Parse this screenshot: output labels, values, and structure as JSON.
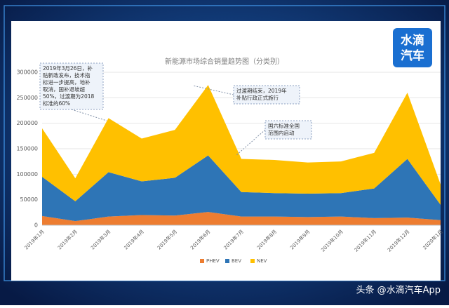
{
  "chart_data": {
    "type": "stacked_area",
    "title": "新能源市场综合销量趋势图（分类别）",
    "categories": [
      "2019年1月",
      "2019年2月",
      "2019年3月",
      "2019年4月",
      "2019年5月",
      "2019年6月",
      "2019年7月",
      "2019年8月",
      "2019年9月",
      "2019年10月",
      "2019年11月",
      "2019年12月",
      "2020年1月"
    ],
    "series": [
      {
        "name": "PHEV",
        "color": "#ed7d31",
        "values": [
          18000,
          8000,
          17000,
          20000,
          19000,
          26000,
          17000,
          17000,
          16000,
          17000,
          14000,
          15000,
          10000
        ]
      },
      {
        "name": "BEV",
        "color": "#2e75b6",
        "values": [
          77000,
          39000,
          87000,
          66000,
          74000,
          111000,
          48000,
          46000,
          46000,
          46000,
          58000,
          115000,
          30000
        ]
      },
      {
        "name": "NEV",
        "color": "#ffc000",
        "values": [
          95000,
          45000,
          106000,
          84000,
          94000,
          138000,
          65000,
          65000,
          61000,
          62000,
          70000,
          130000,
          40000
        ]
      }
    ],
    "ylim": [
      0,
      300000
    ],
    "yticks": [
      0,
      50000,
      100000,
      150000,
      200000,
      250000,
      300000
    ],
    "legend": "bottom",
    "annotations": [
      {
        "lines": [
          "2019年3月26日，补",
          "贴新政发布，技术指",
          "标进一步提高，地补",
          "取消，国补退坡超",
          "50%，过渡期为2018",
          "标准的60%"
        ]
      },
      {
        "lines": [
          "过渡期结束，2019年",
          "补贴行政正式施行"
        ]
      },
      {
        "lines": [
          "国六标准全国",
          "范围内启动"
        ]
      }
    ]
  },
  "logo": [
    "水滴",
    "汽车"
  ],
  "watermark": "头条 @水滴汽车App"
}
